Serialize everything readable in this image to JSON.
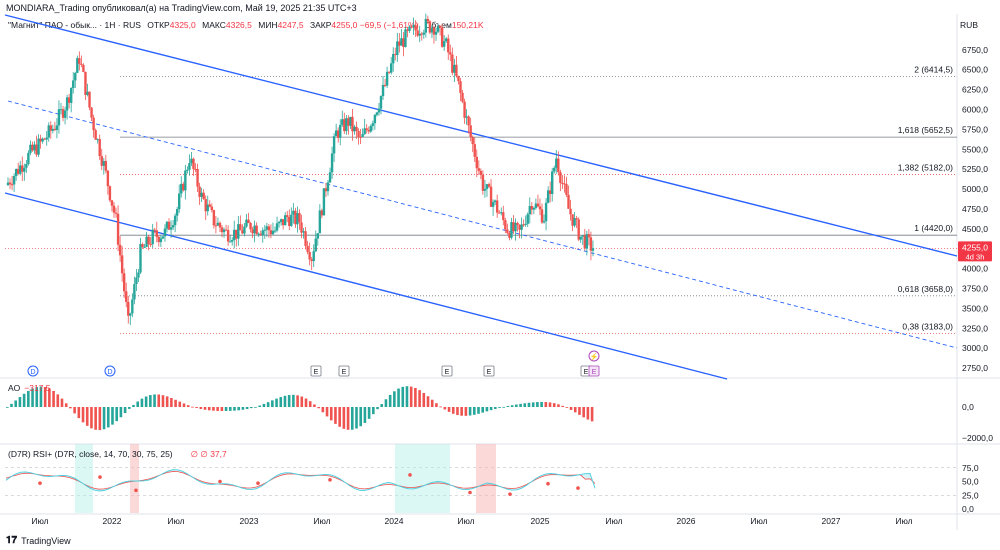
{
  "header": {
    "published": "MONDIARA_Trading опубликовал(а) на TradingView.com, Май 19, 2025 21:35 UTC+3",
    "symbol": "\"Магнит\" ПАО - обык... · 1Н · RUS",
    "open_label": "ОТКР",
    "open": "4325,0",
    "high_label": "МАКС",
    "high": "4326,5",
    "low_label": "МИН",
    "low": "4247,5",
    "close_label": "ЗАКР",
    "close": "4255,0",
    "change": "−69,5 (−1,61%)",
    "volume_label": "Объем",
    "volume": "150,21K",
    "currency": "RUB"
  },
  "colors": {
    "up": "#26a69a",
    "down": "#ef5350",
    "channel": "#2962ff",
    "price_tag": "#f23645"
  },
  "price_tag": {
    "price": "4255,0",
    "countdown": "4d 3h"
  },
  "ao_panel": {
    "label": "AO",
    "value": "−317,5"
  },
  "rsi_panel": {
    "label": "(D7R) RSI+ (D7R, close, 14, 70, 30, 75, 25)",
    "extra": "∅  ∅  37,7"
  },
  "footer": {
    "brand": "TradingView"
  },
  "chart_data": [
    {
      "type": "candlestick",
      "y_axis_ticks": [
        "6750,0",
        "6500,0",
        "6250,0",
        "6000,0",
        "5750,0",
        "5500,0",
        "5250,0",
        "5000,0",
        "4750,0",
        "4500,0",
        "4250,0",
        "4000,0",
        "3750,0",
        "3500,0",
        "3250,0",
        "3000,0",
        "2750,0"
      ],
      "ylim": [
        2650,
        7150
      ],
      "x_axis_ticks": [
        "Июл",
        "2022",
        "Июл",
        "2023",
        "Июл",
        "2024",
        "Июл",
        "2025",
        "Июл",
        "2026",
        "Июл",
        "2027",
        "Июл"
      ],
      "fib_levels": [
        {
          "label": "2 (6414,5)",
          "value": 6414.5
        },
        {
          "label": "1,618 (5652,5)",
          "value": 5652.5
        },
        {
          "label": "1,382 (5182,0)",
          "value": 5182.0
        },
        {
          "label": "1 (4420,0)",
          "value": 4420.0
        },
        {
          "label": "0,618 (3658,0)",
          "value": 3658.0
        },
        {
          "label": "0,38 (3183,0)",
          "value": 3183.0
        }
      ],
      "last_price": 4255.0,
      "events": [
        "D",
        "D",
        "E",
        "E",
        "E",
        "E",
        "E",
        "E"
      ],
      "price_path": [
        [
          "2021-05",
          5050
        ],
        [
          "2021-06",
          5250
        ],
        [
          "2021-07",
          5450
        ],
        [
          "2021-08",
          5600
        ],
        [
          "2021-09",
          5800
        ],
        [
          "2021-10",
          6100
        ],
        [
          "2021-11",
          6650
        ],
        [
          "2021-12",
          5900
        ],
        [
          "2022-01",
          5300
        ],
        [
          "2022-02",
          4600
        ],
        [
          "2022-03",
          3300
        ],
        [
          "2022-04",
          4200
        ],
        [
          "2022-05",
          4400
        ],
        [
          "2022-06",
          4450
        ],
        [
          "2022-07",
          4750
        ],
        [
          "2022-08",
          5400
        ],
        [
          "2022-09",
          4900
        ],
        [
          "2022-10",
          4600
        ],
        [
          "2022-11",
          4450
        ],
        [
          "2022-12",
          4450
        ],
        [
          "2023-01",
          4550
        ],
        [
          "2023-02",
          4500
        ],
        [
          "2023-03",
          4480
        ],
        [
          "2023-04",
          4650
        ],
        [
          "2023-05",
          4600
        ],
        [
          "2023-06",
          4150
        ],
        [
          "2023-07",
          4900
        ],
        [
          "2023-08",
          5700
        ],
        [
          "2023-09",
          5850
        ],
        [
          "2023-10",
          5600
        ],
        [
          "2023-11",
          5900
        ],
        [
          "2023-12",
          6300
        ],
        [
          "2024-01",
          6800
        ],
        [
          "2024-02",
          6950
        ],
        [
          "2024-03",
          7050
        ],
        [
          "2024-04",
          7050
        ],
        [
          "2024-05",
          6800
        ],
        [
          "2024-06",
          6300
        ],
        [
          "2024-07",
          5650
        ],
        [
          "2024-08",
          5050
        ],
        [
          "2024-09",
          4800
        ],
        [
          "2024-10",
          4500
        ],
        [
          "2024-11",
          4450
        ],
        [
          "2024-12",
          4850
        ],
        [
          "2025-01",
          4650
        ],
        [
          "2025-02",
          5400
        ],
        [
          "2025-03",
          4750
        ],
        [
          "2025-04",
          4400
        ],
        [
          "2025-05",
          4255
        ]
      ]
    },
    {
      "type": "histogram",
      "name": "AO",
      "y_axis_ticks": [
        "0,0",
        "−2000,0"
      ],
      "last_value": -317.5
    },
    {
      "type": "line",
      "name": "RSI+",
      "y_axis_ticks": [
        "75,0",
        "50,0",
        "25,0",
        "0,0"
      ],
      "last_value": 37.7
    }
  ]
}
